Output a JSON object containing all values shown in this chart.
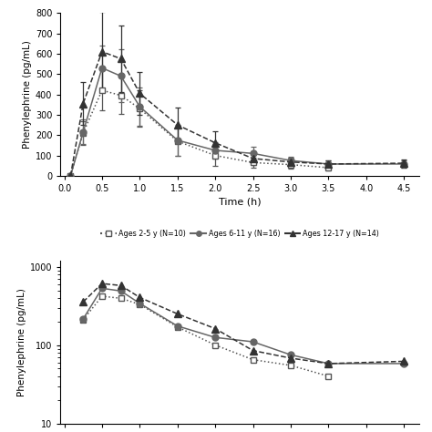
{
  "time_top": [
    0.083,
    0.25,
    0.5,
    0.75,
    1.0,
    1.5,
    2.0,
    2.5,
    3.0,
    3.5,
    4.5
  ],
  "ages_2_5_mean": [
    0,
    210,
    420,
    395,
    330,
    170,
    100,
    65,
    55,
    40,
    null
  ],
  "ages_2_5_err": [
    0,
    60,
    100,
    90,
    90,
    70,
    50,
    25,
    20,
    15,
    null
  ],
  "ages_6_11_mean": [
    0,
    215,
    530,
    490,
    340,
    175,
    125,
    110,
    75,
    58,
    58
  ],
  "ages_6_11_err": [
    0,
    60,
    110,
    130,
    95,
    75,
    40,
    35,
    20,
    18,
    18
  ],
  "ages_12_17_mean": [
    0,
    355,
    610,
    575,
    405,
    250,
    162,
    85,
    68,
    58,
    62
  ],
  "ages_12_17_err": [
    0,
    105,
    195,
    165,
    105,
    85,
    55,
    30,
    20,
    18,
    20
  ],
  "log_time": [
    0.083,
    0.25,
    0.5,
    0.75,
    1.0,
    1.5,
    2.0,
    2.5,
    3.0,
    3.5,
    4.5
  ],
  "log_2_5": [
    null,
    210,
    420,
    395,
    330,
    170,
    100,
    65,
    55,
    40,
    null
  ],
  "log_6_11": [
    null,
    215,
    530,
    490,
    340,
    175,
    125,
    110,
    75,
    58,
    58
  ],
  "log_12_17": [
    null,
    355,
    610,
    575,
    405,
    250,
    162,
    85,
    68,
    58,
    62
  ],
  "ylabel": "Phenylephrine (pg/mL)",
  "xlabel": "Time (h)",
  "legend_labels": [
    "Ages 2-5 y (N=10)",
    "Ages 6-11 y (N=16)",
    "Ages 12-17 y (N=14)"
  ],
  "xticks": [
    0.0,
    0.5,
    1.0,
    1.5,
    2.0,
    2.5,
    3.0,
    3.5,
    4.0,
    4.5
  ],
  "xticklabels": [
    "0.0",
    "0.5",
    "1.0",
    "1.5",
    "2.0",
    "2.5",
    "3.0",
    "3.5",
    "4.0",
    "4.5"
  ],
  "top_yticks": [
    0,
    100,
    200,
    300,
    400,
    500,
    600,
    700,
    800
  ],
  "top_yticklabels": [
    "0",
    "100",
    "200",
    "300",
    "400",
    "500",
    "600",
    "700",
    "800"
  ],
  "color_sq": "#555555",
  "color_circ": "#666666",
  "color_tri": "#333333",
  "bg_color": "#ffffff"
}
